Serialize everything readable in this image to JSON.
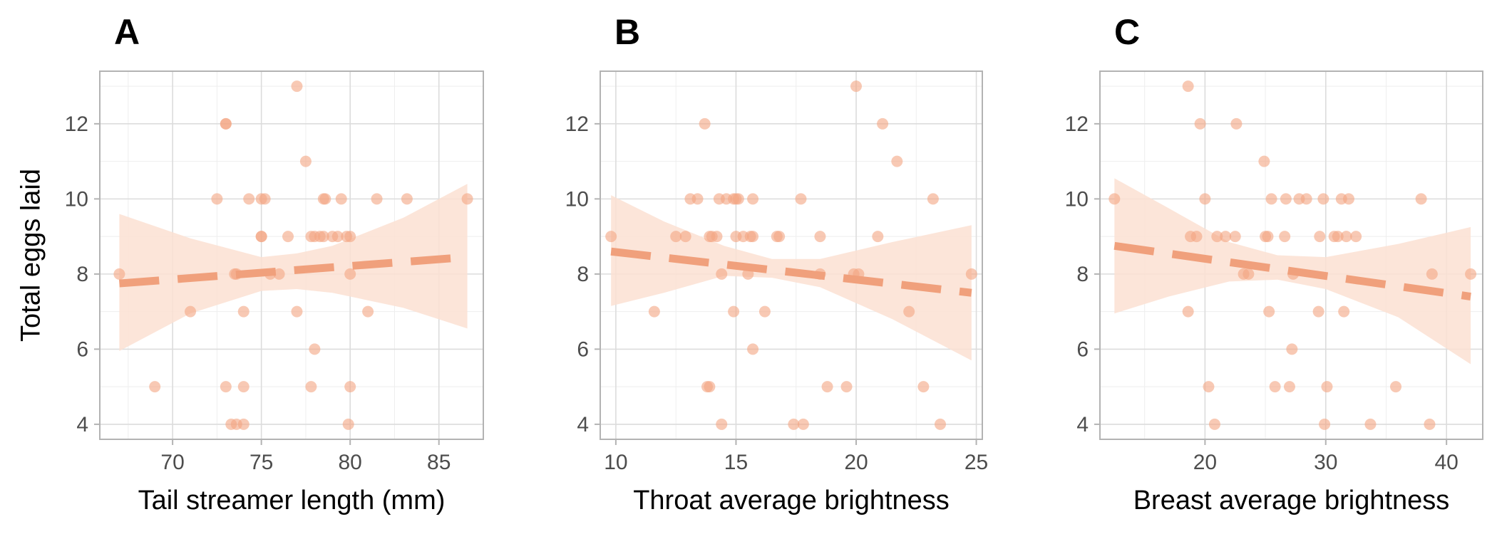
{
  "style": {
    "point_color": "#f4a582",
    "line_color": "#f0a07c",
    "ribbon_color": "#fbe0d2",
    "grid_major": "#dcdcdc",
    "grid_minor": "#eeeeee",
    "frame": "#b3b3b3"
  },
  "chart_data": [
    {
      "type": "scatter",
      "panel_label": "A",
      "xlabel": "Tail streamer length (mm)",
      "ylabel": "Total eggs laid",
      "xlim": [
        65.9,
        87.5
      ],
      "ylim": [
        3.6,
        13.4
      ],
      "xticks": [
        70,
        75,
        80,
        85
      ],
      "yticks": [
        4,
        6,
        8,
        10,
        12
      ],
      "grid": true,
      "points": [
        {
          "x": 67.0,
          "y": 8
        },
        {
          "x": 69.0,
          "y": 5
        },
        {
          "x": 71.0,
          "y": 7
        },
        {
          "x": 72.5,
          "y": 10
        },
        {
          "x": 73.0,
          "y": 12
        },
        {
          "x": 73.0,
          "y": 12
        },
        {
          "x": 73.0,
          "y": 5
        },
        {
          "x": 73.3,
          "y": 4
        },
        {
          "x": 73.6,
          "y": 4
        },
        {
          "x": 73.5,
          "y": 8
        },
        {
          "x": 73.6,
          "y": 8
        },
        {
          "x": 74.0,
          "y": 7
        },
        {
          "x": 74.0,
          "y": 5
        },
        {
          "x": 74.0,
          "y": 4
        },
        {
          "x": 74.3,
          "y": 10
        },
        {
          "x": 75.0,
          "y": 10
        },
        {
          "x": 75.2,
          "y": 10
        },
        {
          "x": 75.0,
          "y": 9
        },
        {
          "x": 75.0,
          "y": 9
        },
        {
          "x": 75.5,
          "y": 8
        },
        {
          "x": 76.0,
          "y": 8
        },
        {
          "x": 76.5,
          "y": 9
        },
        {
          "x": 77.0,
          "y": 13
        },
        {
          "x": 77.0,
          "y": 7
        },
        {
          "x": 77.5,
          "y": 11
        },
        {
          "x": 77.8,
          "y": 9
        },
        {
          "x": 77.8,
          "y": 5
        },
        {
          "x": 78.0,
          "y": 6
        },
        {
          "x": 78.0,
          "y": 9
        },
        {
          "x": 78.3,
          "y": 9
        },
        {
          "x": 78.5,
          "y": 10
        },
        {
          "x": 78.6,
          "y": 10
        },
        {
          "x": 78.5,
          "y": 9
        },
        {
          "x": 79.0,
          "y": 9
        },
        {
          "x": 79.3,
          "y": 9
        },
        {
          "x": 79.5,
          "y": 10
        },
        {
          "x": 79.8,
          "y": 9
        },
        {
          "x": 80.0,
          "y": 9
        },
        {
          "x": 79.9,
          "y": 4
        },
        {
          "x": 80.0,
          "y": 5
        },
        {
          "x": 80.0,
          "y": 8
        },
        {
          "x": 81.0,
          "y": 7
        },
        {
          "x": 81.5,
          "y": 10
        },
        {
          "x": 83.2,
          "y": 10
        },
        {
          "x": 86.6,
          "y": 10
        }
      ],
      "fit": {
        "x": [
          67.0,
          86.6
        ],
        "y": [
          7.75,
          8.45
        ]
      },
      "ci": {
        "x": [
          67.0,
          71.0,
          75.0,
          77.0,
          79.0,
          83.0,
          86.6
        ],
        "lower": [
          5.95,
          6.95,
          7.55,
          7.6,
          7.5,
          7.1,
          6.55
        ],
        "upper": [
          9.6,
          8.95,
          8.45,
          8.55,
          8.75,
          9.5,
          10.4
        ]
      }
    },
    {
      "type": "scatter",
      "panel_label": "B",
      "xlabel": "Throat average brightness",
      "ylabel": "",
      "xlim": [
        9.35,
        25.25
      ],
      "ylim": [
        3.6,
        13.4
      ],
      "xticks": [
        10,
        15,
        20,
        25
      ],
      "yticks": [
        4,
        6,
        8,
        10,
        12
      ],
      "grid": true,
      "points": [
        {
          "x": 9.8,
          "y": 9
        },
        {
          "x": 11.6,
          "y": 7
        },
        {
          "x": 12.5,
          "y": 9
        },
        {
          "x": 12.9,
          "y": 9
        },
        {
          "x": 13.1,
          "y": 10
        },
        {
          "x": 13.4,
          "y": 10
        },
        {
          "x": 13.7,
          "y": 12
        },
        {
          "x": 13.8,
          "y": 5
        },
        {
          "x": 13.9,
          "y": 5
        },
        {
          "x": 13.9,
          "y": 9
        },
        {
          "x": 14.0,
          "y": 9
        },
        {
          "x": 14.2,
          "y": 9
        },
        {
          "x": 14.3,
          "y": 10
        },
        {
          "x": 14.4,
          "y": 8
        },
        {
          "x": 14.4,
          "y": 4
        },
        {
          "x": 14.6,
          "y": 10
        },
        {
          "x": 14.9,
          "y": 7
        },
        {
          "x": 14.9,
          "y": 10
        },
        {
          "x": 15.0,
          "y": 10
        },
        {
          "x": 15.1,
          "y": 10
        },
        {
          "x": 15.0,
          "y": 9
        },
        {
          "x": 15.3,
          "y": 9
        },
        {
          "x": 15.5,
          "y": 8
        },
        {
          "x": 15.6,
          "y": 9
        },
        {
          "x": 15.7,
          "y": 9
        },
        {
          "x": 15.7,
          "y": 10
        },
        {
          "x": 15.7,
          "y": 6
        },
        {
          "x": 16.2,
          "y": 7
        },
        {
          "x": 16.7,
          "y": 9
        },
        {
          "x": 16.8,
          "y": 9
        },
        {
          "x": 17.4,
          "y": 4
        },
        {
          "x": 17.7,
          "y": 10
        },
        {
          "x": 17.8,
          "y": 4
        },
        {
          "x": 18.5,
          "y": 9
        },
        {
          "x": 18.5,
          "y": 8
        },
        {
          "x": 18.8,
          "y": 5
        },
        {
          "x": 19.6,
          "y": 5
        },
        {
          "x": 20.0,
          "y": 13
        },
        {
          "x": 19.9,
          "y": 8
        },
        {
          "x": 20.1,
          "y": 8
        },
        {
          "x": 20.9,
          "y": 9
        },
        {
          "x": 21.1,
          "y": 12
        },
        {
          "x": 21.7,
          "y": 11
        },
        {
          "x": 22.2,
          "y": 7
        },
        {
          "x": 22.8,
          "y": 5
        },
        {
          "x": 23.2,
          "y": 10
        },
        {
          "x": 23.5,
          "y": 4
        },
        {
          "x": 24.8,
          "y": 8
        }
      ],
      "fit": {
        "x": [
          9.8,
          24.8
        ],
        "y": [
          8.6,
          7.5
        ]
      },
      "ci": {
        "x": [
          9.8,
          12.0,
          14.5,
          16.5,
          18.5,
          21.5,
          24.8
        ],
        "lower": [
          7.15,
          7.5,
          7.95,
          7.9,
          7.65,
          6.8,
          5.7
        ],
        "upper": [
          10.1,
          9.4,
          8.75,
          8.4,
          8.4,
          8.85,
          9.3
        ]
      }
    },
    {
      "type": "scatter",
      "panel_label": "C",
      "xlabel": "Breast average brightness",
      "ylabel": "",
      "xlim": [
        11.3,
        43.0
      ],
      "ylim": [
        3.6,
        13.4
      ],
      "xticks": [
        20,
        30,
        40
      ],
      "yticks": [
        4,
        6,
        8,
        10,
        12
      ],
      "grid": true,
      "points": [
        {
          "x": 12.5,
          "y": 10
        },
        {
          "x": 18.6,
          "y": 13
        },
        {
          "x": 18.6,
          "y": 7
        },
        {
          "x": 18.8,
          "y": 9
        },
        {
          "x": 19.3,
          "y": 9
        },
        {
          "x": 19.6,
          "y": 12
        },
        {
          "x": 20.0,
          "y": 10
        },
        {
          "x": 20.3,
          "y": 5
        },
        {
          "x": 20.8,
          "y": 4
        },
        {
          "x": 21.0,
          "y": 9
        },
        {
          "x": 21.7,
          "y": 9
        },
        {
          "x": 22.5,
          "y": 9
        },
        {
          "x": 22.6,
          "y": 12
        },
        {
          "x": 23.2,
          "y": 8
        },
        {
          "x": 23.6,
          "y": 8
        },
        {
          "x": 24.9,
          "y": 11
        },
        {
          "x": 25.0,
          "y": 9
        },
        {
          "x": 25.2,
          "y": 9
        },
        {
          "x": 25.3,
          "y": 7
        },
        {
          "x": 25.5,
          "y": 10
        },
        {
          "x": 25.8,
          "y": 5
        },
        {
          "x": 26.6,
          "y": 9
        },
        {
          "x": 26.7,
          "y": 10
        },
        {
          "x": 27.0,
          "y": 5
        },
        {
          "x": 27.2,
          "y": 6
        },
        {
          "x": 27.3,
          "y": 8
        },
        {
          "x": 27.8,
          "y": 10
        },
        {
          "x": 28.4,
          "y": 10
        },
        {
          "x": 29.4,
          "y": 7
        },
        {
          "x": 29.5,
          "y": 9
        },
        {
          "x": 29.8,
          "y": 10
        },
        {
          "x": 29.9,
          "y": 4
        },
        {
          "x": 30.1,
          "y": 5
        },
        {
          "x": 30.7,
          "y": 9
        },
        {
          "x": 31.0,
          "y": 9
        },
        {
          "x": 31.3,
          "y": 10
        },
        {
          "x": 31.5,
          "y": 7
        },
        {
          "x": 31.7,
          "y": 9
        },
        {
          "x": 31.9,
          "y": 10
        },
        {
          "x": 32.5,
          "y": 9
        },
        {
          "x": 33.7,
          "y": 4
        },
        {
          "x": 35.8,
          "y": 5
        },
        {
          "x": 37.9,
          "y": 10
        },
        {
          "x": 38.6,
          "y": 4
        },
        {
          "x": 38.8,
          "y": 8
        },
        {
          "x": 42.0,
          "y": 8
        }
      ],
      "fit": {
        "x": [
          12.5,
          42.0
        ],
        "y": [
          8.75,
          7.4
        ]
      },
      "ci": {
        "x": [
          12.5,
          17.0,
          22.0,
          26.0,
          30.0,
          36.0,
          42.0
        ],
        "lower": [
          6.95,
          7.4,
          7.8,
          7.85,
          7.6,
          6.85,
          5.6
        ],
        "upper": [
          10.55,
          9.75,
          8.85,
          8.5,
          8.45,
          8.8,
          9.25
        ]
      }
    }
  ]
}
